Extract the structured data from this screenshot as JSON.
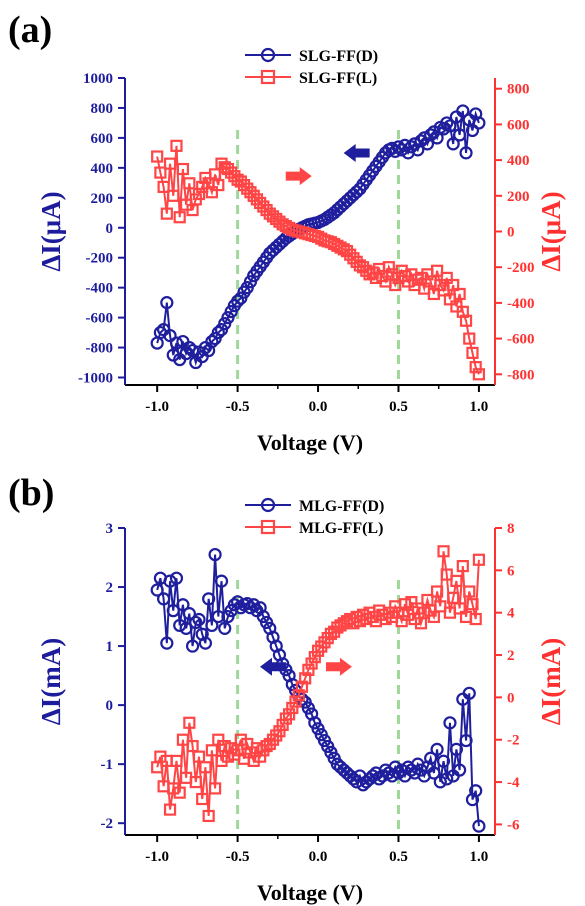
{
  "chart_data": [
    {
      "panel_label": "(a)",
      "type": "line",
      "xlabel": "Voltage (V)",
      "ylabel_left": "ΔI(μA)",
      "ylabel_right": "ΔI(μA)",
      "xlim": [
        -1.2,
        1.1
      ],
      "ylim_left": [
        -1050,
        1000
      ],
      "ylim_right": [
        -860,
        860
      ],
      "xticks": [
        -1.0,
        -0.5,
        0.0,
        0.5,
        1.0
      ],
      "xtick_labels": [
        "-1.0",
        "-0.5",
        "0.0",
        "0.5",
        "1.0"
      ],
      "yticks_left": [
        -1000,
        -800,
        -600,
        -400,
        -200,
        0,
        200,
        400,
        600,
        800,
        1000
      ],
      "ytick_labels_left": [
        "-1000",
        "-800",
        "-600",
        "-400",
        "-200",
        "0",
        "200",
        "400",
        "600",
        "800",
        "1000"
      ],
      "yticks_right": [
        -800,
        -600,
        -400,
        -200,
        0,
        200,
        400,
        600,
        800
      ],
      "ytick_labels_right": [
        "-800",
        "-600",
        "-400",
        "-200",
        "0",
        "200",
        "400",
        "600",
        "800"
      ],
      "vlines": [
        -0.5,
        0.5
      ],
      "arrows": [
        {
          "x": -0.12,
          "y_right": 310,
          "direction": "right",
          "color": "#ff4545"
        },
        {
          "x": 0.24,
          "y_right": 440,
          "direction": "left",
          "color": "#1f1f9e"
        }
      ],
      "legend": "top-center",
      "series": [
        {
          "name": "SLG-FF(D)",
          "axis": "left",
          "marker": "circle",
          "color": "#1f1f9e",
          "x": [
            -1.0,
            -0.98,
            -0.96,
            -0.94,
            -0.92,
            -0.9,
            -0.88,
            -0.86,
            -0.84,
            -0.82,
            -0.8,
            -0.78,
            -0.76,
            -0.74,
            -0.72,
            -0.7,
            -0.68,
            -0.66,
            -0.64,
            -0.62,
            -0.6,
            -0.58,
            -0.56,
            -0.54,
            -0.52,
            -0.5,
            -0.48,
            -0.46,
            -0.44,
            -0.42,
            -0.4,
            -0.38,
            -0.36,
            -0.34,
            -0.32,
            -0.3,
            -0.28,
            -0.26,
            -0.24,
            -0.22,
            -0.2,
            -0.18,
            -0.16,
            -0.14,
            -0.12,
            -0.1,
            -0.08,
            -0.06,
            -0.04,
            -0.02,
            0.0,
            0.02,
            0.04,
            0.06,
            0.08,
            0.1,
            0.12,
            0.14,
            0.16,
            0.18,
            0.2,
            0.22,
            0.24,
            0.26,
            0.28,
            0.3,
            0.32,
            0.34,
            0.36,
            0.38,
            0.4,
            0.42,
            0.44,
            0.46,
            0.48,
            0.5,
            0.52,
            0.54,
            0.56,
            0.58,
            0.6,
            0.62,
            0.64,
            0.66,
            0.68,
            0.7,
            0.72,
            0.74,
            0.76,
            0.78,
            0.8,
            0.82,
            0.84,
            0.86,
            0.88,
            0.9,
            0.92,
            0.94,
            0.96,
            0.98,
            1.0
          ],
          "y": [
            -770,
            -700,
            -680,
            -500,
            -720,
            -850,
            -770,
            -880,
            -760,
            -840,
            -800,
            -820,
            -900,
            -830,
            -860,
            -800,
            -820,
            -760,
            -740,
            -700,
            -680,
            -640,
            -600,
            -560,
            -520,
            -490,
            -470,
            -430,
            -400,
            -360,
            -320,
            -290,
            -260,
            -230,
            -200,
            -170,
            -150,
            -130,
            -110,
            -90,
            -70,
            -55,
            -40,
            -25,
            -10,
            0,
            10,
            20,
            25,
            30,
            35,
            45,
            55,
            70,
            85,
            100,
            120,
            140,
            160,
            180,
            200,
            220,
            240,
            260,
            290,
            320,
            350,
            380,
            410,
            440,
            470,
            500,
            520,
            530,
            510,
            540,
            520,
            550,
            500,
            540,
            560,
            520,
            580,
            600,
            560,
            620,
            640,
            600,
            670,
            660,
            700,
            680,
            560,
            740,
            620,
            780,
            500,
            720,
            650,
            760,
            700
          ]
        },
        {
          "name": "SLG-FF(L)",
          "axis": "right",
          "marker": "square",
          "color": "#ff4545",
          "x": [
            -1.0,
            -0.98,
            -0.96,
            -0.94,
            -0.92,
            -0.9,
            -0.88,
            -0.86,
            -0.84,
            -0.82,
            -0.8,
            -0.78,
            -0.76,
            -0.74,
            -0.72,
            -0.7,
            -0.68,
            -0.66,
            -0.64,
            -0.62,
            -0.6,
            -0.58,
            -0.56,
            -0.54,
            -0.52,
            -0.5,
            -0.48,
            -0.46,
            -0.44,
            -0.42,
            -0.4,
            -0.38,
            -0.36,
            -0.34,
            -0.32,
            -0.3,
            -0.28,
            -0.26,
            -0.24,
            -0.22,
            -0.2,
            -0.18,
            -0.16,
            -0.14,
            -0.12,
            -0.1,
            -0.08,
            -0.06,
            -0.04,
            -0.02,
            0.0,
            0.02,
            0.04,
            0.06,
            0.08,
            0.1,
            0.12,
            0.14,
            0.16,
            0.18,
            0.2,
            0.22,
            0.24,
            0.26,
            0.28,
            0.3,
            0.32,
            0.34,
            0.36,
            0.38,
            0.4,
            0.42,
            0.44,
            0.46,
            0.48,
            0.5,
            0.52,
            0.54,
            0.56,
            0.58,
            0.6,
            0.62,
            0.64,
            0.66,
            0.68,
            0.7,
            0.72,
            0.74,
            0.76,
            0.78,
            0.8,
            0.82,
            0.84,
            0.86,
            0.88,
            0.9,
            0.92,
            0.94,
            0.96,
            0.98,
            1.0
          ],
          "y": [
            420,
            330,
            250,
            100,
            380,
            200,
            480,
            80,
            350,
            150,
            270,
            120,
            180,
            210,
            250,
            300,
            270,
            220,
            320,
            260,
            380,
            360,
            350,
            330,
            310,
            290,
            280,
            260,
            240,
            220,
            200,
            180,
            160,
            140,
            120,
            100,
            85,
            70,
            55,
            40,
            30,
            20,
            10,
            5,
            0,
            -5,
            -10,
            -15,
            -20,
            -25,
            -30,
            -40,
            -50,
            -55,
            -60,
            -70,
            -80,
            -90,
            -100,
            -110,
            -130,
            -150,
            -170,
            -190,
            -200,
            -220,
            -240,
            -230,
            -260,
            -210,
            -250,
            -280,
            -200,
            -240,
            -300,
            -260,
            -220,
            -250,
            -280,
            -240,
            -300,
            -270,
            -260,
            -320,
            -240,
            -280,
            -350,
            -220,
            -300,
            -330,
            -260,
            -380,
            -300,
            -420,
            -350,
            -450,
            -500,
            -600,
            -680,
            -760,
            -800
          ]
        }
      ]
    },
    {
      "panel_label": "(b)",
      "type": "line",
      "xlabel": "Voltage (V)",
      "ylabel_left": "ΔI(mA)",
      "ylabel_right": "ΔI(mA)",
      "xlim": [
        -1.2,
        1.1
      ],
      "ylim_left": [
        -2.2,
        3.0
      ],
      "ylim_right": [
        -6.5,
        8.0
      ],
      "xticks": [
        -1.0,
        -0.5,
        0.0,
        0.5,
        1.0
      ],
      "xtick_labels": [
        "-1.0",
        "-0.5",
        "0.0",
        "0.5",
        "1.0"
      ],
      "yticks_left": [
        -2,
        -1,
        0,
        1,
        2,
        3
      ],
      "ytick_labels_left": [
        "-2",
        "-1",
        "0",
        "1",
        "2",
        "3"
      ],
      "yticks_right": [
        -6,
        -4,
        -2,
        0,
        2,
        4,
        6,
        8
      ],
      "ytick_labels_right": [
        "-6",
        "-4",
        "-2",
        "0",
        "2",
        "4",
        "6",
        "8"
      ],
      "vlines": [
        -0.5,
        0.5
      ],
      "arrows": [
        {
          "x": -0.28,
          "y_left": 0.65,
          "direction": "left",
          "color": "#1f1f9e"
        },
        {
          "x": 0.13,
          "y_left": 0.65,
          "direction": "right",
          "color": "#ff4545"
        }
      ],
      "legend": "top-center",
      "series": [
        {
          "name": "MLG-FF(D)",
          "axis": "left",
          "marker": "circle",
          "color": "#1f1f9e",
          "x": [
            -1.0,
            -0.98,
            -0.96,
            -0.94,
            -0.92,
            -0.9,
            -0.88,
            -0.86,
            -0.84,
            -0.82,
            -0.8,
            -0.78,
            -0.76,
            -0.74,
            -0.72,
            -0.7,
            -0.68,
            -0.66,
            -0.64,
            -0.62,
            -0.6,
            -0.58,
            -0.56,
            -0.54,
            -0.52,
            -0.5,
            -0.48,
            -0.46,
            -0.44,
            -0.42,
            -0.4,
            -0.38,
            -0.36,
            -0.34,
            -0.32,
            -0.3,
            -0.28,
            -0.26,
            -0.24,
            -0.22,
            -0.2,
            -0.18,
            -0.16,
            -0.14,
            -0.12,
            -0.1,
            -0.08,
            -0.06,
            -0.04,
            -0.02,
            0.0,
            0.02,
            0.04,
            0.06,
            0.08,
            0.1,
            0.12,
            0.14,
            0.16,
            0.18,
            0.2,
            0.22,
            0.24,
            0.26,
            0.28,
            0.3,
            0.32,
            0.34,
            0.36,
            0.38,
            0.4,
            0.42,
            0.44,
            0.46,
            0.48,
            0.5,
            0.52,
            0.54,
            0.56,
            0.58,
            0.6,
            0.62,
            0.64,
            0.66,
            0.68,
            0.7,
            0.72,
            0.74,
            0.76,
            0.78,
            0.8,
            0.82,
            0.84,
            0.86,
            0.88,
            0.9,
            0.92,
            0.94,
            0.96,
            0.98,
            1.0
          ],
          "y": [
            1.95,
            2.15,
            1.8,
            1.05,
            2.1,
            1.6,
            2.15,
            1.35,
            1.7,
            1.3,
            1.55,
            1.0,
            1.4,
            1.45,
            1.2,
            1.05,
            1.8,
            1.35,
            2.55,
            1.5,
            2.1,
            1.3,
            1.5,
            1.6,
            1.7,
            1.75,
            1.65,
            1.7,
            1.72,
            1.65,
            1.7,
            1.6,
            1.65,
            1.5,
            1.4,
            1.3,
            1.15,
            1.0,
            0.85,
            0.7,
            0.6,
            0.5,
            0.35,
            0.25,
            0.15,
            0.1,
            0.05,
            -0.05,
            -0.15,
            -0.3,
            -0.4,
            -0.5,
            -0.6,
            -0.7,
            -0.8,
            -0.9,
            -1.0,
            -1.05,
            -1.1,
            -1.15,
            -1.2,
            -1.25,
            -1.3,
            -1.2,
            -1.35,
            -1.3,
            -1.25,
            -1.2,
            -1.15,
            -1.25,
            -1.2,
            -1.1,
            -1.15,
            -1.2,
            -1.05,
            -1.15,
            -1.1,
            -1.2,
            -1.05,
            -1.1,
            -1.15,
            -1.0,
            -1.1,
            -1.2,
            -1.05,
            -0.9,
            -1.15,
            -0.75,
            -1.3,
            -0.95,
            -1.25,
            -0.3,
            -1.2,
            -0.75,
            -1.1,
            0.1,
            -0.6,
            0.2,
            -1.6,
            -1.45,
            -2.05
          ]
        },
        {
          "name": "MLG-FF(L)",
          "axis": "right",
          "marker": "square",
          "color": "#ff4545",
          "x": [
            -1.0,
            -0.98,
            -0.96,
            -0.94,
            -0.92,
            -0.9,
            -0.88,
            -0.86,
            -0.84,
            -0.82,
            -0.8,
            -0.78,
            -0.76,
            -0.74,
            -0.72,
            -0.7,
            -0.68,
            -0.66,
            -0.64,
            -0.62,
            -0.6,
            -0.58,
            -0.56,
            -0.54,
            -0.52,
            -0.5,
            -0.48,
            -0.46,
            -0.44,
            -0.42,
            -0.4,
            -0.38,
            -0.36,
            -0.34,
            -0.32,
            -0.3,
            -0.28,
            -0.26,
            -0.24,
            -0.22,
            -0.2,
            -0.18,
            -0.16,
            -0.14,
            -0.12,
            -0.1,
            -0.08,
            -0.06,
            -0.04,
            -0.02,
            0.0,
            0.02,
            0.04,
            0.06,
            0.08,
            0.1,
            0.12,
            0.14,
            0.16,
            0.18,
            0.2,
            0.22,
            0.24,
            0.26,
            0.28,
            0.3,
            0.32,
            0.34,
            0.36,
            0.38,
            0.4,
            0.42,
            0.44,
            0.46,
            0.48,
            0.5,
            0.52,
            0.54,
            0.56,
            0.58,
            0.6,
            0.62,
            0.64,
            0.66,
            0.68,
            0.7,
            0.72,
            0.74,
            0.76,
            0.78,
            0.8,
            0.82,
            0.84,
            0.86,
            0.88,
            0.9,
            0.92,
            0.94,
            0.96,
            0.98,
            1.0
          ],
          "y": [
            -3.3,
            -2.8,
            -4.2,
            -3.0,
            -5.3,
            -4.3,
            -3.0,
            -4.5,
            -2.0,
            -3.8,
            -1.2,
            -2.3,
            -4.0,
            -2.8,
            -4.8,
            -3.3,
            -5.6,
            -2.5,
            -4.3,
            -2.0,
            -3.0,
            -2.3,
            -2.8,
            -2.4,
            -2.7,
            -2.5,
            -2.0,
            -2.9,
            -2.2,
            -2.6,
            -3.0,
            -2.4,
            -2.8,
            -2.5,
            -2.3,
            -2.2,
            -2.0,
            -1.8,
            -1.6,
            -1.3,
            -1.0,
            -0.8,
            -0.5,
            -0.2,
            0.1,
            0.5,
            0.9,
            1.3,
            1.6,
            1.9,
            2.2,
            2.4,
            2.6,
            2.8,
            3.0,
            3.1,
            3.3,
            3.4,
            3.5,
            3.6,
            3.7,
            3.5,
            3.8,
            3.6,
            3.9,
            3.7,
            4.0,
            3.8,
            3.6,
            4.1,
            3.9,
            3.7,
            4.0,
            3.8,
            4.3,
            4.0,
            3.6,
            4.4,
            3.9,
            4.5,
            3.7,
            4.2,
            3.5,
            4.0,
            4.6,
            4.1,
            3.8,
            5.0,
            4.3,
            6.9,
            5.8,
            4.0,
            4.7,
            5.5,
            4.2,
            6.2,
            3.8,
            5.0,
            4.4,
            3.7,
            6.5
          ]
        }
      ]
    }
  ]
}
